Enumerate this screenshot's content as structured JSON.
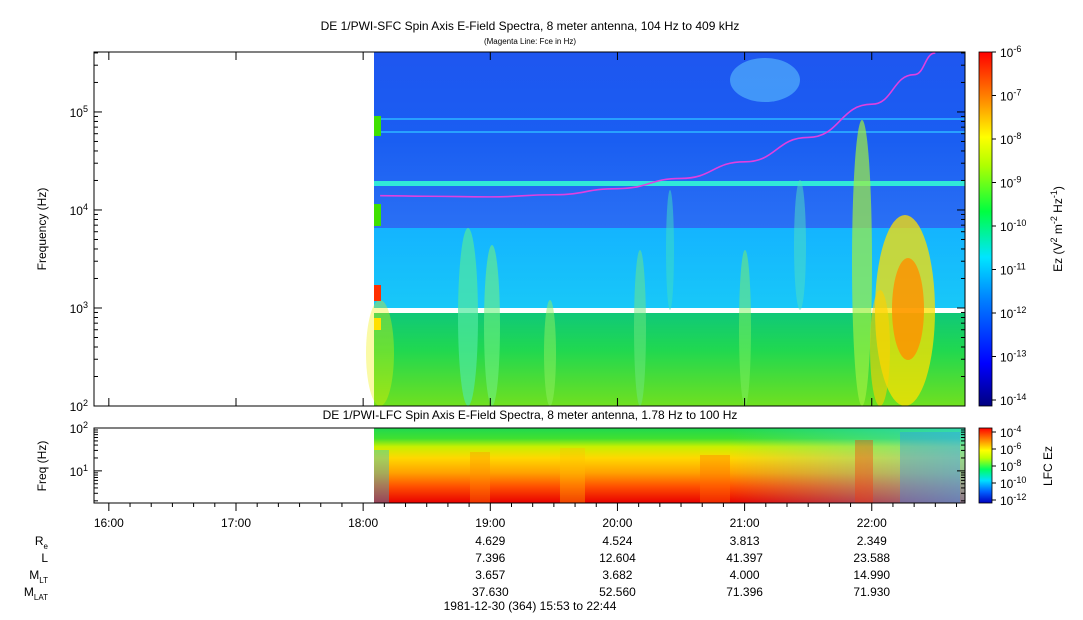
{
  "chart_data": [
    {
      "type": "heatmap",
      "title": "DE 1/PWI-SFC  Spin Axis E-Field Spectra, 8 meter antenna, 104 Hz to 409 kHz",
      "subtitle": "(Magenta Line: Fce in Hz)",
      "ylabel": "Frequency (Hz)",
      "yscale": "log",
      "ylim": [
        100,
        409000
      ],
      "y_ticks": [
        {
          "value": 100,
          "base": "10",
          "exp": "2"
        },
        {
          "value": 1000,
          "base": "10",
          "exp": "3"
        },
        {
          "value": 10000,
          "base": "10",
          "exp": "4"
        },
        {
          "value": 100000,
          "base": "10",
          "exp": "5"
        }
      ],
      "x_data_start": "18:08",
      "x_data_end": "22:44",
      "fce_line": {
        "name": "Fce",
        "color": "#e040e0",
        "points": [
          {
            "time": "18:08",
            "hz": 14000
          },
          {
            "time": "18:30",
            "hz": 13800
          },
          {
            "time": "19:00",
            "hz": 13600
          },
          {
            "time": "19:30",
            "hz": 14300
          },
          {
            "time": "20:00",
            "hz": 16500
          },
          {
            "time": "20:30",
            "hz": 21000
          },
          {
            "time": "21:00",
            "hz": 31000
          },
          {
            "time": "21:30",
            "hz": 55000
          },
          {
            "time": "22:00",
            "hz": 120000
          },
          {
            "time": "22:20",
            "hz": 240000
          },
          {
            "time": "22:30",
            "hz": 400000
          }
        ]
      },
      "colorbar": {
        "label_base": "Ez (V",
        "label_sup1": "2",
        "label_mid": " m",
        "label_sup2": "-2",
        "label_mid2": " Hz",
        "label_sup3": "-1",
        "label_end": ")",
        "scale": "log",
        "range": [
          1e-14,
          1e-06
        ],
        "ticks": [
          {
            "base": "10",
            "exp": "-6"
          },
          {
            "base": "10",
            "exp": "-7"
          },
          {
            "base": "10",
            "exp": "-8"
          },
          {
            "base": "10",
            "exp": "-9"
          },
          {
            "base": "10",
            "exp": "-10"
          },
          {
            "base": "10",
            "exp": "-11"
          },
          {
            "base": "10",
            "exp": "-12"
          },
          {
            "base": "10",
            "exp": "-13"
          },
          {
            "base": "10",
            "exp": "-14"
          }
        ]
      }
    },
    {
      "type": "heatmap",
      "title": "DE 1/PWI-LFC  Spin Axis E-Field Spectra, 8 meter antenna, 1.78 Hz to 100 Hz",
      "ylabel": "Freq (Hz)",
      "yscale": "log",
      "ylim": [
        1.78,
        100
      ],
      "y_ticks": [
        {
          "value": 10,
          "base": "10",
          "exp": "1"
        },
        {
          "value": 100,
          "base": "10",
          "exp": "2"
        }
      ],
      "colorbar": {
        "label": "LFC Ez",
        "scale": "log",
        "range": [
          1e-12,
          0.0001
        ],
        "ticks": [
          {
            "base": "10",
            "exp": "-4"
          },
          {
            "base": "10",
            "exp": "-6"
          },
          {
            "base": "10",
            "exp": "-8"
          },
          {
            "base": "10",
            "exp": "-10"
          },
          {
            "base": "10",
            "exp": "-12"
          }
        ]
      }
    }
  ],
  "time_axis": {
    "start": "15:53",
    "end": "22:44",
    "ticks": [
      "16:00",
      "17:00",
      "18:00",
      "19:00",
      "20:00",
      "21:00",
      "22:00"
    ]
  },
  "ephemeris": {
    "rows": [
      {
        "label": "R",
        "sub": "e",
        "values": [
          "4.629",
          "4.524",
          "3.813",
          "2.349"
        ]
      },
      {
        "label": "L",
        "sub": "",
        "values": [
          "7.396",
          "12.604",
          "41.397",
          "23.588"
        ]
      },
      {
        "label": "M",
        "sub": "LT",
        "values": [
          "3.657",
          "3.682",
          "4.000",
          "14.990"
        ]
      },
      {
        "label": "M",
        "sub": "LAT",
        "values": [
          "37.630",
          "52.560",
          "71.396",
          "71.930"
        ]
      }
    ],
    "times": [
      "19:00",
      "20:00",
      "21:00",
      "22:00"
    ]
  },
  "date_range": "1981-12-30 (364) 15:53 to 22:44"
}
